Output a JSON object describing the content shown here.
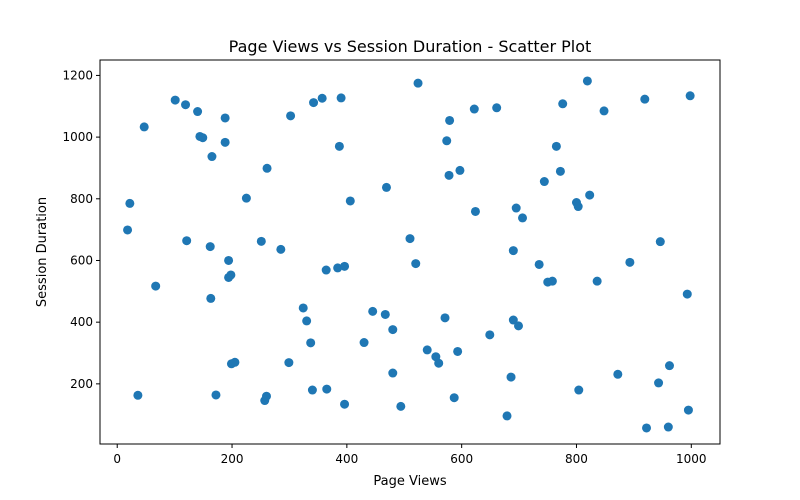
{
  "chart_data": {
    "type": "scatter",
    "title": "Page Views vs Session Duration - Scatter Plot",
    "xlabel": "Page Views",
    "ylabel": "Session Duration",
    "xlim": [
      -30,
      1050
    ],
    "ylim": [
      5,
      1250
    ],
    "xticks": [
      0,
      200,
      400,
      600,
      800,
      1000
    ],
    "yticks": [
      200,
      400,
      600,
      800,
      1000,
      1200
    ],
    "grid": false,
    "color": "#1f77b4",
    "points": [
      {
        "x": 101,
        "y": 1120
      },
      {
        "x": 119,
        "y": 1105
      },
      {
        "x": 140,
        "y": 1083
      },
      {
        "x": 47,
        "y": 1033
      },
      {
        "x": 144,
        "y": 1002
      },
      {
        "x": 149,
        "y": 998
      },
      {
        "x": 188,
        "y": 1062
      },
      {
        "x": 188,
        "y": 983
      },
      {
        "x": 165,
        "y": 937
      },
      {
        "x": 302,
        "y": 1069
      },
      {
        "x": 342,
        "y": 1112
      },
      {
        "x": 357,
        "y": 1126
      },
      {
        "x": 390,
        "y": 1127
      },
      {
        "x": 387,
        "y": 970
      },
      {
        "x": 261,
        "y": 899
      },
      {
        "x": 225,
        "y": 802
      },
      {
        "x": 22,
        "y": 785
      },
      {
        "x": 18,
        "y": 699
      },
      {
        "x": 121,
        "y": 664
      },
      {
        "x": 67,
        "y": 517
      },
      {
        "x": 162,
        "y": 645
      },
      {
        "x": 194,
        "y": 600
      },
      {
        "x": 198,
        "y": 553
      },
      {
        "x": 194,
        "y": 545
      },
      {
        "x": 163,
        "y": 477
      },
      {
        "x": 251,
        "y": 662
      },
      {
        "x": 285,
        "y": 636
      },
      {
        "x": 406,
        "y": 793
      },
      {
        "x": 469,
        "y": 837
      },
      {
        "x": 524,
        "y": 1175
      },
      {
        "x": 579,
        "y": 1054
      },
      {
        "x": 574,
        "y": 988
      },
      {
        "x": 578,
        "y": 876
      },
      {
        "x": 597,
        "y": 892
      },
      {
        "x": 622,
        "y": 1091
      },
      {
        "x": 661,
        "y": 1095
      },
      {
        "x": 624,
        "y": 759
      },
      {
        "x": 695,
        "y": 770
      },
      {
        "x": 706,
        "y": 738
      },
      {
        "x": 510,
        "y": 671
      },
      {
        "x": 690,
        "y": 632
      },
      {
        "x": 364,
        "y": 569
      },
      {
        "x": 384,
        "y": 576
      },
      {
        "x": 396,
        "y": 581
      },
      {
        "x": 520,
        "y": 590
      },
      {
        "x": 324,
        "y": 446
      },
      {
        "x": 330,
        "y": 404
      },
      {
        "x": 337,
        "y": 333
      },
      {
        "x": 445,
        "y": 435
      },
      {
        "x": 467,
        "y": 425
      },
      {
        "x": 480,
        "y": 376
      },
      {
        "x": 430,
        "y": 334
      },
      {
        "x": 540,
        "y": 310
      },
      {
        "x": 555,
        "y": 288
      },
      {
        "x": 560,
        "y": 267
      },
      {
        "x": 593,
        "y": 305
      },
      {
        "x": 571,
        "y": 414
      },
      {
        "x": 649,
        "y": 359
      },
      {
        "x": 690,
        "y": 407
      },
      {
        "x": 699,
        "y": 388
      },
      {
        "x": 36,
        "y": 163
      },
      {
        "x": 172,
        "y": 164
      },
      {
        "x": 199,
        "y": 265
      },
      {
        "x": 205,
        "y": 270
      },
      {
        "x": 257,
        "y": 146
      },
      {
        "x": 260,
        "y": 160
      },
      {
        "x": 299,
        "y": 269
      },
      {
        "x": 340,
        "y": 180
      },
      {
        "x": 365,
        "y": 183
      },
      {
        "x": 396,
        "y": 134
      },
      {
        "x": 480,
        "y": 235
      },
      {
        "x": 494,
        "y": 127
      },
      {
        "x": 587,
        "y": 155
      },
      {
        "x": 679,
        "y": 96
      },
      {
        "x": 686,
        "y": 222
      },
      {
        "x": 744,
        "y": 856
      },
      {
        "x": 765,
        "y": 970
      },
      {
        "x": 776,
        "y": 1108
      },
      {
        "x": 772,
        "y": 889
      },
      {
        "x": 819,
        "y": 1182
      },
      {
        "x": 848,
        "y": 1085
      },
      {
        "x": 919,
        "y": 1123
      },
      {
        "x": 998,
        "y": 1134
      },
      {
        "x": 800,
        "y": 788
      },
      {
        "x": 803,
        "y": 775
      },
      {
        "x": 823,
        "y": 812
      },
      {
        "x": 735,
        "y": 587
      },
      {
        "x": 750,
        "y": 530
      },
      {
        "x": 758,
        "y": 533
      },
      {
        "x": 836,
        "y": 533
      },
      {
        "x": 893,
        "y": 594
      },
      {
        "x": 946,
        "y": 661
      },
      {
        "x": 993,
        "y": 491
      },
      {
        "x": 804,
        "y": 180
      },
      {
        "x": 872,
        "y": 231
      },
      {
        "x": 943,
        "y": 203
      },
      {
        "x": 962,
        "y": 259
      },
      {
        "x": 922,
        "y": 57
      },
      {
        "x": 960,
        "y": 60
      },
      {
        "x": 995,
        "y": 115
      }
    ]
  }
}
